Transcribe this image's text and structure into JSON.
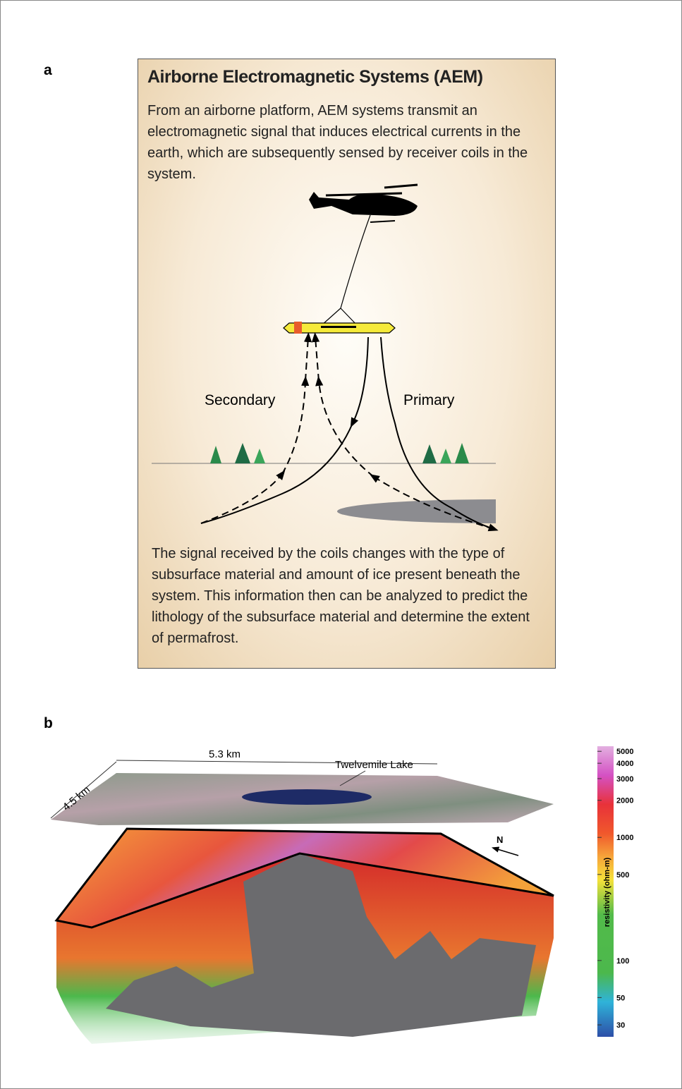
{
  "panel_a": {
    "label": "a",
    "title": "Airborne Electromagnetic Systems (AEM)",
    "intro": "From an airborne platform, AEM systems transmit an electromagnetic signal that induces electrical currents in the earth, which are subsequently sensed by receiver coils in the system.",
    "secondary_label": "Secondary",
    "primary_label": "Primary",
    "conclusion": "The signal received by the coils changes with the type of subsurface material and amount of ice present beneath the system. This information then can be analyzed to predict the lithology of the subsurface material and determine the extent of permafrost."
  },
  "panel_b": {
    "label": "b",
    "width_label": "5.3 km",
    "depth_label": "4.5 km",
    "lake_label": "Twelvemile Lake",
    "north_label": "N",
    "colorbar": {
      "label": "resistivity (ohm-m)",
      "log": true,
      "lim": [
        24,
        5500
      ],
      "ticks": [
        30,
        50,
        100,
        500,
        1000,
        2000,
        3000,
        4000,
        5000
      ]
    }
  }
}
